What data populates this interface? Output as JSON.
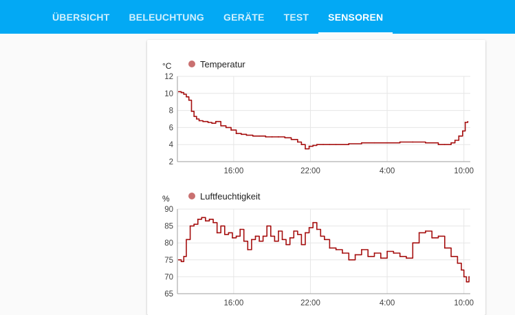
{
  "nav": {
    "tabs": [
      {
        "label": "ÜBERSICHT",
        "active": false
      },
      {
        "label": "BELEUCHTUNG",
        "active": false
      },
      {
        "label": "GERÄTE",
        "active": false
      },
      {
        "label": "TEST",
        "active": false
      },
      {
        "label": "SENSOREN",
        "active": true
      }
    ],
    "bar_color": "#03a9f4"
  },
  "chart_data": [
    {
      "type": "line",
      "ylabel": "°C",
      "ylim": [
        2,
        12
      ],
      "yticks": [
        2,
        4,
        6,
        8,
        10,
        12
      ],
      "xticks": [
        "16:00",
        "22:00",
        "4:00",
        "10:00"
      ],
      "xlim_hours": [
        11.6,
        34.5
      ],
      "xtick_hours": [
        16,
        22,
        28,
        34
      ],
      "grid": true,
      "legend_position": "top-left",
      "series": [
        {
          "name": "Temperatur",
          "color": "#a50e0e",
          "x_hours": [
            11.7,
            11.9,
            12.1,
            12.3,
            12.5,
            12.7,
            12.9,
            13.1,
            13.3,
            13.6,
            14.0,
            14.3,
            14.6,
            15.0,
            15.4,
            15.8,
            16.2,
            16.6,
            17.0,
            17.5,
            18.0,
            18.5,
            19.0,
            19.5,
            20.0,
            20.5,
            21.0,
            21.3,
            21.6,
            21.9,
            22.2,
            22.5,
            23.0,
            23.5,
            24.0,
            25.0,
            26.0,
            27.0,
            28.0,
            29.0,
            30.0,
            31.0,
            32.0,
            32.5,
            33.0,
            33.3,
            33.6,
            33.9,
            34.1,
            34.3
          ],
          "values": [
            10.2,
            10.1,
            9.9,
            9.6,
            9.2,
            7.9,
            7.3,
            7.0,
            6.8,
            6.7,
            6.6,
            6.5,
            6.7,
            6.2,
            6.0,
            5.7,
            5.3,
            5.2,
            5.1,
            5.0,
            5.0,
            4.9,
            4.9,
            4.9,
            4.8,
            4.6,
            4.3,
            4.0,
            3.5,
            3.8,
            3.9,
            4.0,
            4.0,
            4.0,
            4.0,
            4.1,
            4.2,
            4.2,
            4.2,
            4.3,
            4.3,
            4.2,
            4.0,
            4.0,
            4.2,
            4.5,
            5.0,
            5.6,
            6.6,
            6.7
          ]
        }
      ]
    },
    {
      "type": "line",
      "ylabel": "%",
      "ylim": [
        65,
        90
      ],
      "yticks": [
        65,
        70,
        75,
        80,
        85,
        90
      ],
      "xticks": [
        "16:00",
        "22:00",
        "4:00",
        "10:00"
      ],
      "xlim_hours": [
        11.6,
        34.5
      ],
      "xtick_hours": [
        16,
        22,
        28,
        34
      ],
      "grid": true,
      "legend_position": "top-left",
      "series": [
        {
          "name": "Luftfeuchtigkeit",
          "color": "#a50e0e",
          "x_hours": [
            11.7,
            11.9,
            12.1,
            12.3,
            12.6,
            12.9,
            13.2,
            13.5,
            13.8,
            14.1,
            14.4,
            14.7,
            15.0,
            15.3,
            15.6,
            15.9,
            16.2,
            16.5,
            16.8,
            17.1,
            17.4,
            17.7,
            18.0,
            18.3,
            18.6,
            18.9,
            19.2,
            19.5,
            19.8,
            20.1,
            20.4,
            20.7,
            21.0,
            21.3,
            21.6,
            21.9,
            22.2,
            22.5,
            22.8,
            23.1,
            23.5,
            24.0,
            24.5,
            25.0,
            25.5,
            26.0,
            26.5,
            27.0,
            27.5,
            28.0,
            28.5,
            29.0,
            29.5,
            30.0,
            30.5,
            31.0,
            31.5,
            32.0,
            32.5,
            33.0,
            33.5,
            33.8,
            34.0,
            34.2,
            34.4
          ],
          "values": [
            75,
            74.5,
            76,
            81,
            85,
            85.5,
            87,
            87.5,
            86.5,
            87,
            86,
            83,
            85,
            82.5,
            83,
            81.5,
            82,
            84,
            80.5,
            78,
            81,
            82,
            80.5,
            82,
            85,
            82,
            80.5,
            83.5,
            81,
            79.5,
            81.5,
            83.5,
            82.5,
            79.5,
            83,
            84.5,
            86,
            84,
            82,
            81,
            78.5,
            78,
            77,
            75,
            76.5,
            78,
            76,
            77,
            75.5,
            77.5,
            77,
            76,
            75.5,
            80,
            83,
            83.5,
            81.5,
            82,
            78.5,
            76,
            74,
            72,
            70,
            68.5,
            70
          ]
        }
      ]
    }
  ]
}
